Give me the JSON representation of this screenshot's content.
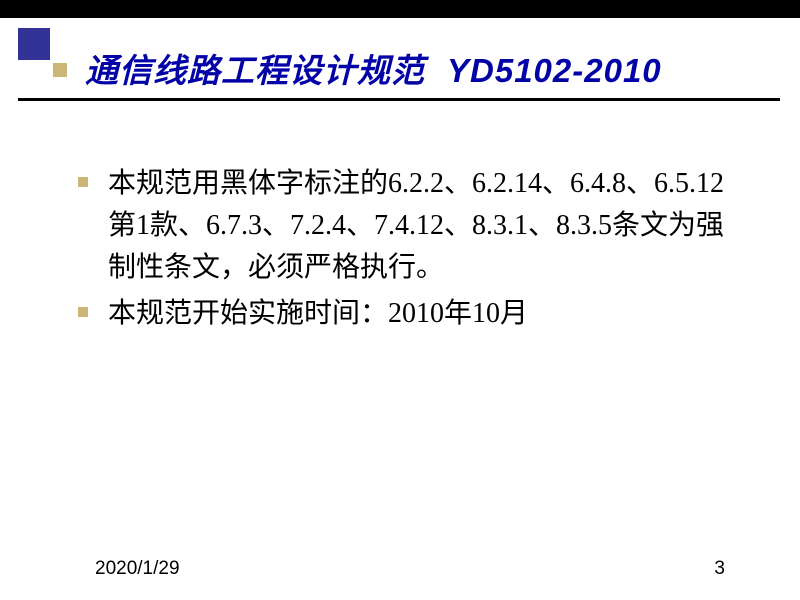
{
  "title": {
    "main": "通信线路工程设计规范",
    "code": "YD5102-2010"
  },
  "bullets": [
    "本规范用黑体字标注的6.2.2、6.2.14、6.4.8、6.5.12第1款、6.7.3、7.2.4、7.4.12、8.3.1、8.3.5条文为强制性条文，必须严格执行。",
    "本规范开始实施时间：2010年10月"
  ],
  "footer": {
    "date": "2020/1/29",
    "page": "3"
  },
  "colors": {
    "title_color": "#0202a6",
    "accent_square": "#333397",
    "bullet_color": "#cbb677",
    "text_color": "#000000",
    "background": "#ffffff"
  },
  "typography": {
    "title_fontsize": 33,
    "body_fontsize": 28,
    "footer_fontsize": 19
  }
}
